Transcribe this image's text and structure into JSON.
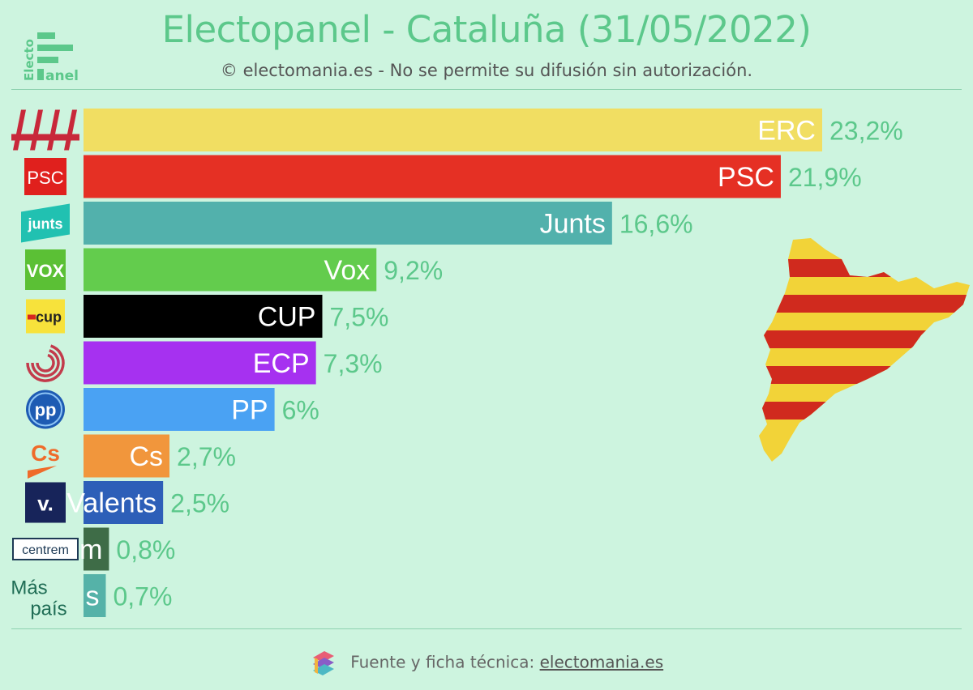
{
  "header": {
    "title": "Electopanel - Cataluña (31/05/2022)",
    "subtitle": "© electomania.es - No se permite su difusión sin autorización.",
    "logo_text_vertical": "Electo",
    "logo_text_bottom": "anel"
  },
  "chart_data": {
    "type": "bar",
    "orientation": "horizontal",
    "categories": [
      "ERC",
      "PSC",
      "Junts",
      "Vox",
      "CUP",
      "ECP",
      "PP",
      "Cs",
      "Valents",
      "Centrem",
      "Más País"
    ],
    "bar_labels": [
      "ERC",
      "PSC",
      "Junts",
      "Vox",
      "CUP",
      "ECP",
      "PP",
      "Cs",
      "Valents",
      "m",
      "s"
    ],
    "values": [
      23.2,
      21.9,
      16.6,
      9.2,
      7.5,
      7.3,
      6,
      2.7,
      2.5,
      0.8,
      0.7
    ],
    "value_labels": [
      "23,2%",
      "21,9%",
      "16,6%",
      "9,2%",
      "7,5%",
      "7,3%",
      "6%",
      "2,7%",
      "2,5%",
      "0,8%",
      "0,7%"
    ],
    "colors": [
      "#f1de62",
      "#e53024",
      "#52b1ac",
      "#63cc4d",
      "#000000",
      "#a631f0",
      "#4aa2f3",
      "#f1963c",
      "#2d5fb8",
      "#3e6c47",
      "#55b2a8"
    ],
    "label_colors": [
      "#ffffff",
      "#ffffff",
      "#ffffff",
      "#ffffff",
      "#ffffff",
      "#ffffff",
      "#ffffff",
      "#ffffff",
      "#ffffff",
      "#ffffff",
      "#ffffff"
    ],
    "value_label_color": "#5cc88b",
    "xlim": [
      0,
      23.2
    ],
    "title": "Electopanel - Cataluña (31/05/2022)",
    "xlabel": "",
    "ylabel": "",
    "grid": false,
    "legend": "none"
  },
  "party_logos": [
    {
      "party": "ERC",
      "icon": "erc-logo-icon",
      "text": ""
    },
    {
      "party": "PSC",
      "icon": "psc-logo-icon",
      "text": "PSC"
    },
    {
      "party": "Junts",
      "icon": "junts-logo-icon",
      "text": "junts"
    },
    {
      "party": "Vox",
      "icon": "vox-logo-icon",
      "text": "VOX"
    },
    {
      "party": "CUP",
      "icon": "cup-logo-icon",
      "text": "cup"
    },
    {
      "party": "ECP",
      "icon": "ecp-logo-icon",
      "text": ""
    },
    {
      "party": "PP",
      "icon": "pp-logo-icon",
      "text": "pp"
    },
    {
      "party": "Cs",
      "icon": "cs-logo-icon",
      "text": "Cs"
    },
    {
      "party": "Valents",
      "icon": "valents-logo-icon",
      "text": "v."
    },
    {
      "party": "Centrem",
      "icon": "centrem-logo-icon",
      "text": "centrem"
    },
    {
      "party": "Más País",
      "icon": "mas-pais-logo-icon",
      "text": "Más país"
    }
  ],
  "footer": {
    "text": "Fuente y ficha técnica:",
    "link": "electomania.es"
  },
  "map_icon": "catalonia-senyera-map-icon",
  "colors": {
    "background": "#cdf4df",
    "accent": "#5cc88b"
  }
}
